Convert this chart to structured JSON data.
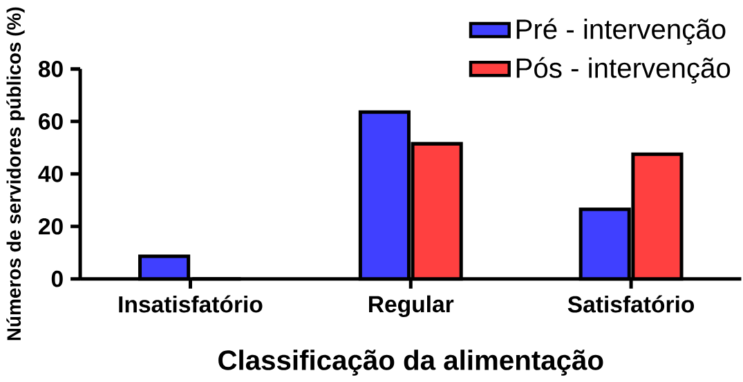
{
  "chart_data": {
    "type": "bar",
    "xlabel": "Classificação da alimentação",
    "ylabel": "Números de servidores públicos (%)",
    "categories": [
      "Insatisfatório",
      "Regular",
      "Satisfatório"
    ],
    "series": [
      {
        "name": "Pré - intervenção",
        "color": "#4040ff",
        "values": [
          8.6,
          63.6,
          26.5
        ]
      },
      {
        "name": "Pós - intervenção",
        "color": "#ff4040",
        "values": [
          0,
          51.5,
          47.5
        ]
      }
    ],
    "ylim": [
      0,
      80
    ],
    "yticks": [
      0,
      20,
      40,
      60,
      80
    ],
    "grid": false,
    "legend": "top right"
  }
}
